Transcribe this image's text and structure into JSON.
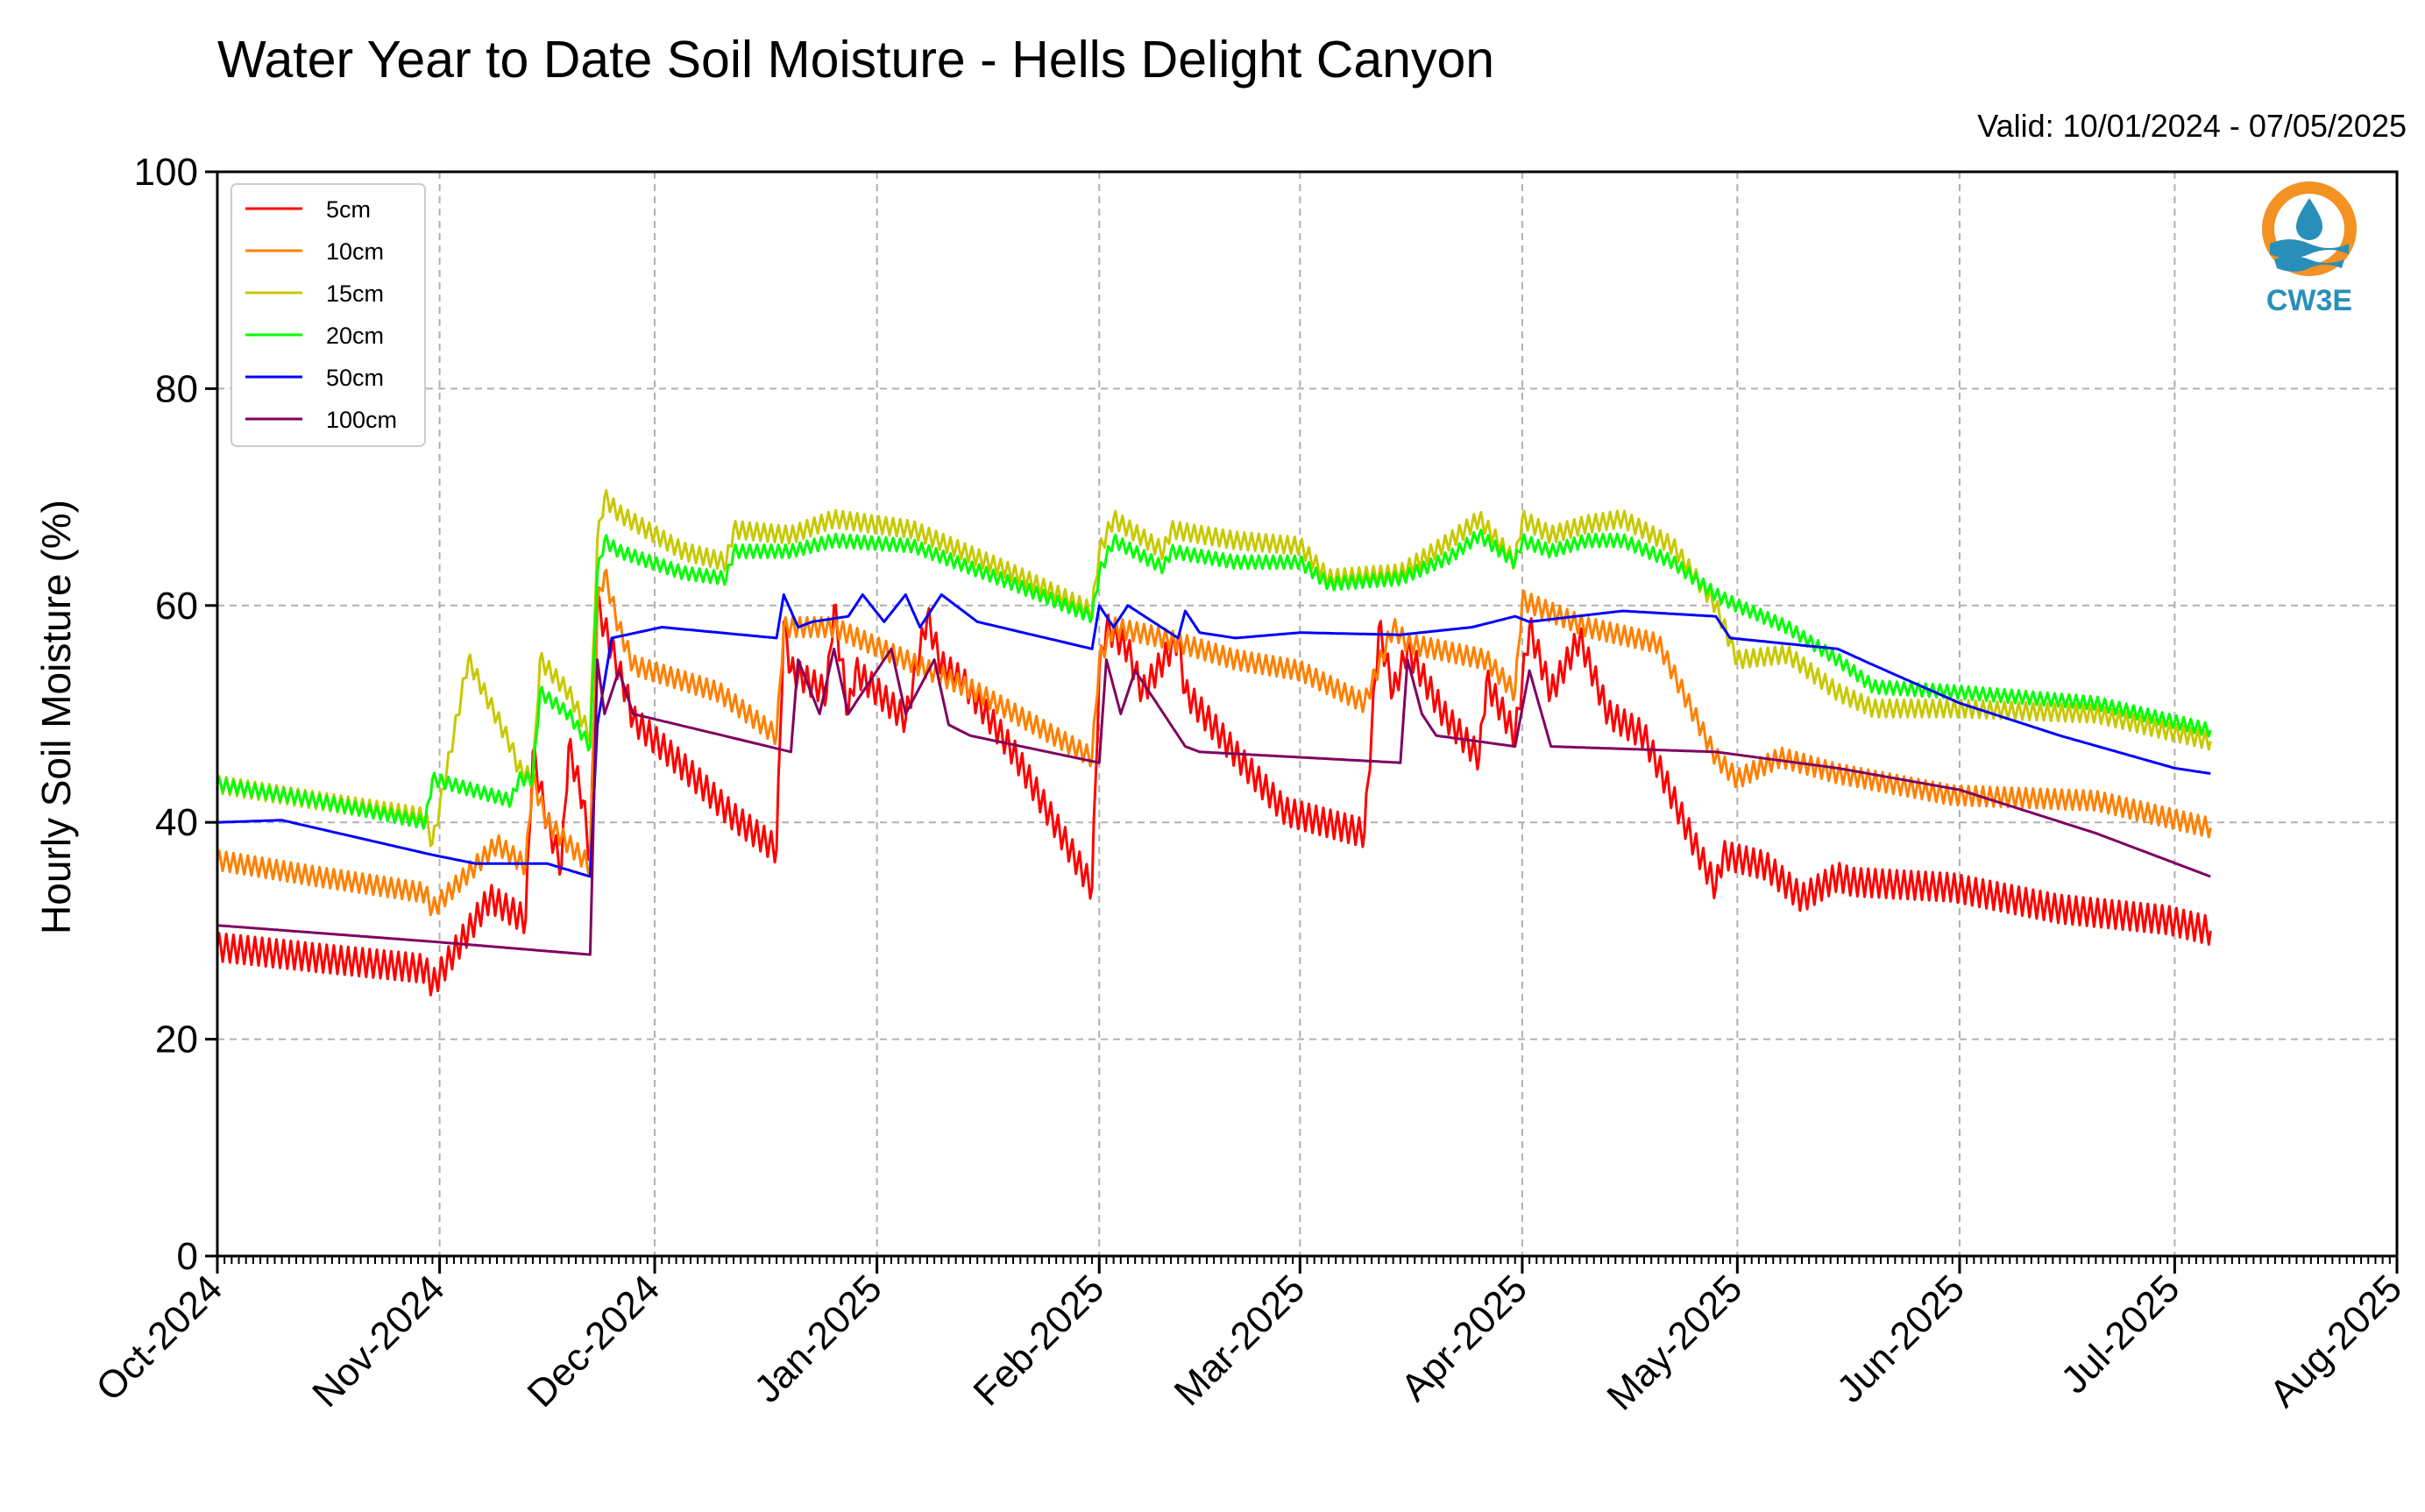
{
  "chart_data": {
    "type": "line",
    "title": "Water Year to Date Soil Moisture - Hells Delight Canyon",
    "subtitle": "Valid: 10/01/2024 - 07/05/2025",
    "xlabel": "",
    "ylabel": "Hourly Soil Moisture (%)",
    "ylim": [
      0,
      100
    ],
    "yticks": [
      0,
      20,
      40,
      60,
      80,
      100
    ],
    "xlim": [
      "2024-10-01",
      "2025-08-01"
    ],
    "xticks": [
      "Oct-2024",
      "Nov-2024",
      "Dec-2024",
      "Jan-2025",
      "Feb-2025",
      "Mar-2025",
      "Apr-2025",
      "May-2025",
      "Jun-2025",
      "Jul-2025",
      "Aug-2025"
    ],
    "grid": true,
    "legend_position": "top-left",
    "x_type": "date",
    "series": [
      {
        "name": "5cm",
        "color": "#ff0000",
        "amp": 1.3,
        "x": [
          "2024-10-01",
          "2024-10-15",
          "2024-10-30",
          "2024-10-31",
          "2024-11-08",
          "2024-11-13",
          "2024-11-14",
          "2024-11-16",
          "2024-11-18",
          "2024-11-19",
          "2024-11-21",
          "2024-11-22",
          "2024-11-23",
          "2024-11-27",
          "2024-11-28",
          "2024-12-06",
          "2024-12-12",
          "2024-12-18",
          "2024-12-19",
          "2024-12-20",
          "2024-12-25",
          "2024-12-26",
          "2024-12-28",
          "2024-12-29",
          "2025-01-05",
          "2025-01-08",
          "2025-01-10",
          "2025-01-13",
          "2025-01-20",
          "2025-01-31",
          "2025-02-01",
          "2025-02-02",
          "2025-02-05",
          "2025-02-07",
          "2025-02-12",
          "2025-02-13",
          "2025-02-18",
          "2025-02-21",
          "2025-02-27",
          "2025-03-10",
          "2025-03-12",
          "2025-03-14",
          "2025-03-16",
          "2025-03-21",
          "2025-03-26",
          "2025-03-27",
          "2025-03-31",
          "2025-04-02",
          "2025-04-05",
          "2025-04-09",
          "2025-04-13",
          "2025-04-18",
          "2025-04-25",
          "2025-04-28",
          "2025-04-29",
          "2025-05-05",
          "2025-05-10",
          "2025-05-15",
          "2025-05-17",
          "2025-05-31",
          "2025-06-15",
          "2025-06-30",
          "2025-07-06"
        ],
        "y": [
          28.5,
          27.5,
          26.5,
          25.0,
          33.0,
          31.0,
          46.5,
          40.0,
          36.0,
          47.0,
          42.0,
          36.5,
          60.0,
          52.0,
          49.5,
          44.5,
          40.5,
          37.5,
          58.5,
          54.0,
          52.0,
          60.0,
          50.0,
          54.0,
          49.5,
          59.0,
          54.5,
          53.0,
          46.5,
          34.0,
          54.0,
          58.0,
          56.0,
          52.0,
          57.0,
          52.0,
          48.0,
          45.5,
          41.0,
          39.0,
          58.0,
          52.0,
          56.0,
          50.0,
          46.0,
          53.0,
          48.0,
          58.0,
          52.0,
          57.0,
          50.0,
          48.0,
          38.0,
          34.0,
          37.0,
          36.0,
          33.0,
          35.0,
          34.5,
          34.0,
          32.0,
          31.0,
          30.0
        ]
      },
      {
        "name": "10cm",
        "color": "#ff8000",
        "amp": 0.9,
        "x": [
          "2024-10-01",
          "2024-10-15",
          "2024-10-30",
          "2024-10-31",
          "2024-11-09",
          "2024-11-13",
          "2024-11-14",
          "2024-11-16",
          "2024-11-19",
          "2024-11-22",
          "2024-11-23",
          "2024-11-24",
          "2024-11-26",
          "2024-11-28",
          "2024-12-10",
          "2024-12-18",
          "2024-12-19",
          "2024-12-26",
          "2025-01-05",
          "2025-01-15",
          "2025-01-31",
          "2025-02-01",
          "2025-02-03",
          "2025-02-10",
          "2025-02-20",
          "2025-03-01",
          "2025-03-10",
          "2025-03-14",
          "2025-03-16",
          "2025-03-27",
          "2025-03-31",
          "2025-04-01",
          "2025-04-10",
          "2025-04-20",
          "2025-04-28",
          "2025-05-01",
          "2025-05-07",
          "2025-05-15",
          "2025-05-31",
          "2025-06-20",
          "2025-07-06"
        ],
        "y": [
          36.5,
          35.0,
          33.5,
          32.0,
          38.0,
          36.0,
          44.0,
          40.0,
          38.0,
          36.0,
          60.0,
          63.0,
          58.0,
          54.5,
          52.0,
          48.0,
          58.0,
          58.0,
          55.0,
          52.0,
          46.0,
          55.0,
          58.0,
          57.0,
          55.0,
          54.0,
          51.0,
          58.0,
          56.5,
          55.0,
          52.0,
          60.5,
          58.0,
          56.5,
          46.0,
          44.0,
          46.0,
          44.5,
          42.5,
          42.0,
          39.5
        ]
      },
      {
        "name": "15cm",
        "color": "#c8c800",
        "amp": 0.8,
        "x": [
          "2024-10-01",
          "2024-10-15",
          "2024-10-30",
          "2024-10-31",
          "2024-11-05",
          "2024-11-11",
          "2024-11-12",
          "2024-11-14",
          "2024-11-15",
          "2024-11-19",
          "2024-11-22",
          "2024-11-23",
          "2024-11-24",
          "2024-11-26",
          "2024-12-05",
          "2024-12-11",
          "2024-12-12",
          "2024-12-20",
          "2024-12-26",
          "2025-01-06",
          "2025-01-20",
          "2025-01-31",
          "2025-02-01",
          "2025-02-03",
          "2025-02-10",
          "2025-02-11",
          "2025-02-20",
          "2025-03-01",
          "2025-03-05",
          "2025-03-15",
          "2025-03-22",
          "2025-03-26",
          "2025-03-31",
          "2025-04-01",
          "2025-04-05",
          "2025-04-10",
          "2025-04-15",
          "2025-04-22",
          "2025-04-28",
          "2025-05-01",
          "2025-05-08",
          "2025-05-15",
          "2025-05-20",
          "2025-06-01",
          "2025-06-20",
          "2025-07-06"
        ],
        "y": [
          43.5,
          42.0,
          40.5,
          38.0,
          55.0,
          47.0,
          45.0,
          44.0,
          55.0,
          52.0,
          48.0,
          66.0,
          70.0,
          68.5,
          65.0,
          64.0,
          67.0,
          66.5,
          68.0,
          67.0,
          63.0,
          59.5,
          65.0,
          68.0,
          65.0,
          67.0,
          66.0,
          65.5,
          62.5,
          63.0,
          66.0,
          68.0,
          64.0,
          68.0,
          66.5,
          67.5,
          68.0,
          65.5,
          60.0,
          55.0,
          55.5,
          52.0,
          50.5,
          50.5,
          50.0,
          47.5
        ]
      },
      {
        "name": "20cm",
        "color": "#00ff00",
        "amp": 0.6,
        "x": [
          "2024-10-01",
          "2024-10-15",
          "2024-10-30",
          "2024-10-31",
          "2024-11-11",
          "2024-11-12",
          "2024-11-14",
          "2024-11-15",
          "2024-11-19",
          "2024-11-22",
          "2024-11-23",
          "2024-11-24",
          "2024-11-26",
          "2024-12-05",
          "2024-12-11",
          "2024-12-12",
          "2024-12-20",
          "2024-12-26",
          "2025-01-06",
          "2025-01-20",
          "2025-01-31",
          "2025-02-01",
          "2025-02-03",
          "2025-02-10",
          "2025-02-11",
          "2025-02-20",
          "2025-03-01",
          "2025-03-05",
          "2025-03-15",
          "2025-03-22",
          "2025-03-26",
          "2025-03-31",
          "2025-04-01",
          "2025-04-05",
          "2025-04-10",
          "2025-04-15",
          "2025-04-22",
          "2025-04-28",
          "2025-05-01",
          "2025-05-08",
          "2025-05-15",
          "2025-05-20",
          "2025-06-01",
          "2025-06-20",
          "2025-07-06"
        ],
        "y": [
          43.5,
          42.0,
          40.0,
          44.0,
          42.0,
          44.0,
          44.0,
          52.0,
          50.0,
          47.0,
          63.0,
          66.0,
          65.0,
          63.0,
          62.5,
          65.0,
          65.0,
          66.0,
          65.5,
          62.0,
          59.0,
          63.0,
          66.0,
          63.5,
          65.0,
          64.0,
          64.0,
          62.0,
          62.5,
          64.5,
          66.5,
          64.0,
          66.0,
          65.0,
          66.0,
          66.0,
          64.0,
          61.0,
          60.0,
          58.0,
          55.0,
          52.5,
          52.0,
          51.0,
          48.5
        ]
      },
      {
        "name": "50cm",
        "color": "#0000ff",
        "amp": 0,
        "x": [
          "2024-10-01",
          "2024-10-10",
          "2024-10-31",
          "2024-11-06",
          "2024-11-16",
          "2024-11-22",
          "2024-11-23",
          "2024-11-25",
          "2024-12-02",
          "2024-12-10",
          "2024-12-18",
          "2024-12-19",
          "2024-12-21",
          "2024-12-23",
          "2024-12-28",
          "2024-12-30",
          "2025-01-02",
          "2025-01-05",
          "2025-01-07",
          "2025-01-10",
          "2025-01-15",
          "2025-01-31",
          "2025-02-01",
          "2025-02-03",
          "2025-02-05",
          "2025-02-12",
          "2025-02-13",
          "2025-02-15",
          "2025-02-20",
          "2025-03-01",
          "2025-03-15",
          "2025-03-25",
          "2025-03-31",
          "2025-04-02",
          "2025-04-15",
          "2025-04-28",
          "2025-04-30",
          "2025-05-15",
          "2025-05-20",
          "2025-06-01",
          "2025-06-15",
          "2025-07-01",
          "2025-07-06"
        ],
        "y": [
          40.0,
          40.2,
          37.0,
          36.2,
          36.2,
          35.0,
          49.0,
          57.0,
          58.0,
          57.5,
          57.0,
          61.0,
          58.0,
          58.5,
          59.0,
          61.0,
          58.5,
          61.0,
          58.0,
          61.0,
          58.5,
          56.0,
          60.0,
          58.0,
          60.0,
          57.0,
          59.5,
          57.5,
          57.0,
          57.5,
          57.3,
          58.0,
          59.0,
          58.5,
          59.5,
          59.0,
          57.0,
          56.0,
          54.5,
          51.0,
          48.0,
          45.0,
          44.5
        ]
      },
      {
        "name": "100cm",
        "color": "#800060",
        "amp": 0,
        "x": [
          "2024-10-01",
          "2024-10-31",
          "2024-11-22",
          "2024-11-23",
          "2024-11-24",
          "2024-11-26",
          "2024-11-28",
          "2024-12-20",
          "2024-12-21",
          "2024-12-24",
          "2024-12-26",
          "2024-12-28",
          "2025-01-03",
          "2025-01-05",
          "2025-01-09",
          "2025-01-11",
          "2025-01-14",
          "2025-02-01",
          "2025-02-02",
          "2025-02-04",
          "2025-02-06",
          "2025-02-13",
          "2025-02-15",
          "2025-03-15",
          "2025-03-16",
          "2025-03-18",
          "2025-03-20",
          "2025-03-31",
          "2025-04-02",
          "2025-04-05",
          "2025-04-28",
          "2025-05-15",
          "2025-06-01",
          "2025-06-20",
          "2025-07-06"
        ],
        "y": [
          30.5,
          29.0,
          27.8,
          55.0,
          50.0,
          54.0,
          50.0,
          46.5,
          55.0,
          50.0,
          56.0,
          50.0,
          56.0,
          50.0,
          55.0,
          49.0,
          48.0,
          45.5,
          55.0,
          50.0,
          54.0,
          47.0,
          46.5,
          45.5,
          55.0,
          50.0,
          48.0,
          47.0,
          54.0,
          47.0,
          46.5,
          45.0,
          43.0,
          39.0,
          35.0
        ]
      }
    ]
  },
  "logo": {
    "text": "CW3E",
    "ring_color": "#f39222",
    "wave_color": "#2a8fb8"
  }
}
